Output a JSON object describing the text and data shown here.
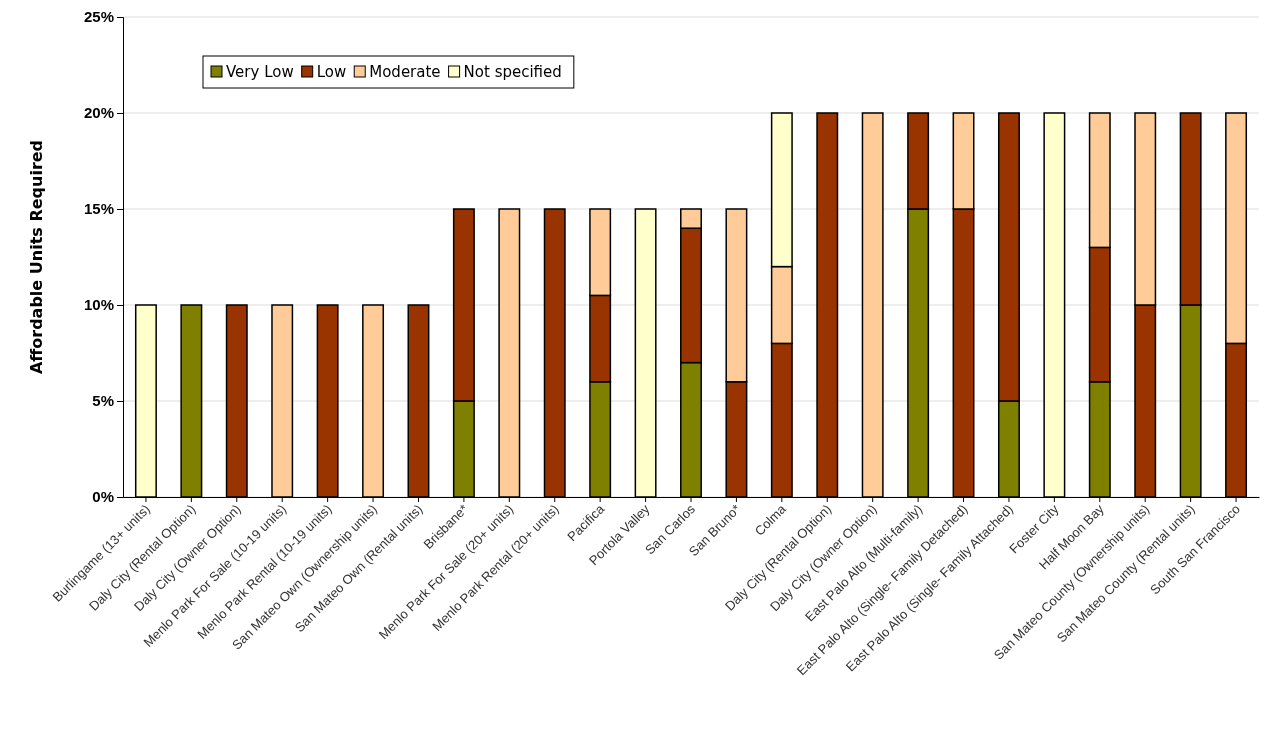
{
  "chart_data": {
    "type": "bar",
    "stacked": true,
    "ylabel": "Affordable Units Required",
    "categories": [
      "Burlingame (13+ units)",
      "Daly City (Rental Option)",
      "Daly City (Owner Option)",
      "Menlo Park For Sale (10-19 units)",
      "Menlo Park Rental  (10-19 units)",
      "San Mateo Own (Ownership units)",
      "San Mateo Own (Rental units)",
      "Brisbane*",
      "Menlo Park For Sale (20+ units)",
      "Menlo Park Rental  (20+ units)",
      "Pacifica",
      "Portola Valley",
      "San Carlos",
      "San Bruno*",
      "Colma",
      "Daly City (Rental Option)",
      "Daly City (Owner Option)",
      "East Palo Alto (Multi-family)",
      "East Palo Alto (Single- Family Detached)",
      "East Palo Alto (Single- Family Attached)",
      "Foster City",
      "Half Moon Bay",
      "San Mateo County (Ownership units)",
      "San Mateo County (Rental units)",
      "South San Francisco"
    ],
    "series": [
      {
        "name": "Very Low",
        "color": "#808000",
        "values": [
          null,
          10,
          null,
          null,
          null,
          null,
          null,
          5,
          null,
          null,
          6,
          null,
          7,
          null,
          null,
          null,
          null,
          15,
          null,
          5,
          null,
          6,
          null,
          10,
          null
        ]
      },
      {
        "name": "Low",
        "color": "#993300",
        "values": [
          null,
          null,
          10,
          null,
          10,
          null,
          10,
          10,
          null,
          15,
          4.5,
          null,
          7,
          6,
          8,
          20,
          null,
          5,
          15,
          15,
          null,
          7,
          10,
          10,
          8
        ]
      },
      {
        "name": "Moderate",
        "color": "#ffcc99",
        "values": [
          null,
          null,
          null,
          10,
          null,
          10,
          null,
          null,
          15,
          null,
          4.5,
          null,
          1,
          9,
          4,
          null,
          20,
          null,
          5,
          null,
          null,
          7,
          10,
          null,
          12
        ]
      },
      {
        "name": "Not specified",
        "color": "#ffffcc",
        "values": [
          10,
          null,
          null,
          null,
          null,
          null,
          null,
          null,
          null,
          null,
          null,
          15,
          null,
          null,
          8,
          null,
          null,
          null,
          null,
          null,
          20,
          null,
          null,
          null,
          null
        ]
      }
    ],
    "ylim": [
      0,
      25
    ],
    "yticks": [
      {
        "value": 0,
        "label": "0%"
      },
      {
        "value": 5,
        "label": "5%"
      },
      {
        "value": 10,
        "label": "10%"
      },
      {
        "value": 15,
        "label": "15%"
      },
      {
        "value": 20,
        "label": "20%"
      },
      {
        "value": 25,
        "label": "25%"
      }
    ],
    "grid": "y",
    "legend": "top left"
  }
}
